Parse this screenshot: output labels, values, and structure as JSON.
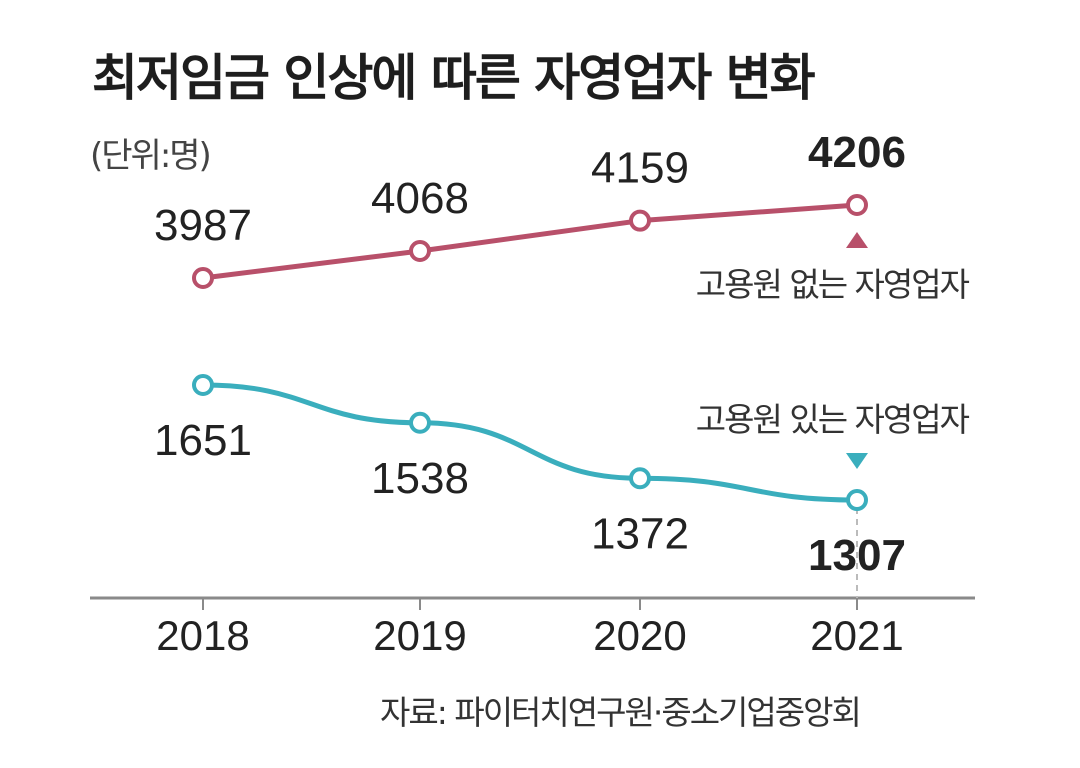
{
  "chart_data": {
    "type": "line",
    "title": "최저임금 인상에 따른 자영업자 변화",
    "unit_label": "(단위:명)",
    "x": [
      "2018",
      "2019",
      "2020",
      "2021"
    ],
    "series": [
      {
        "name": "고용원 없는 자영업자",
        "values": [
          3987,
          4068,
          4159,
          4206
        ],
        "color": "#b8506a",
        "trend": "up"
      },
      {
        "name": "고용원 있는 자영업자",
        "values": [
          1651,
          1538,
          1372,
          1307
        ],
        "color": "#3aaebd",
        "trend": "down"
      }
    ],
    "source": "자료: 파이터치연구원·중소기업중앙회"
  }
}
